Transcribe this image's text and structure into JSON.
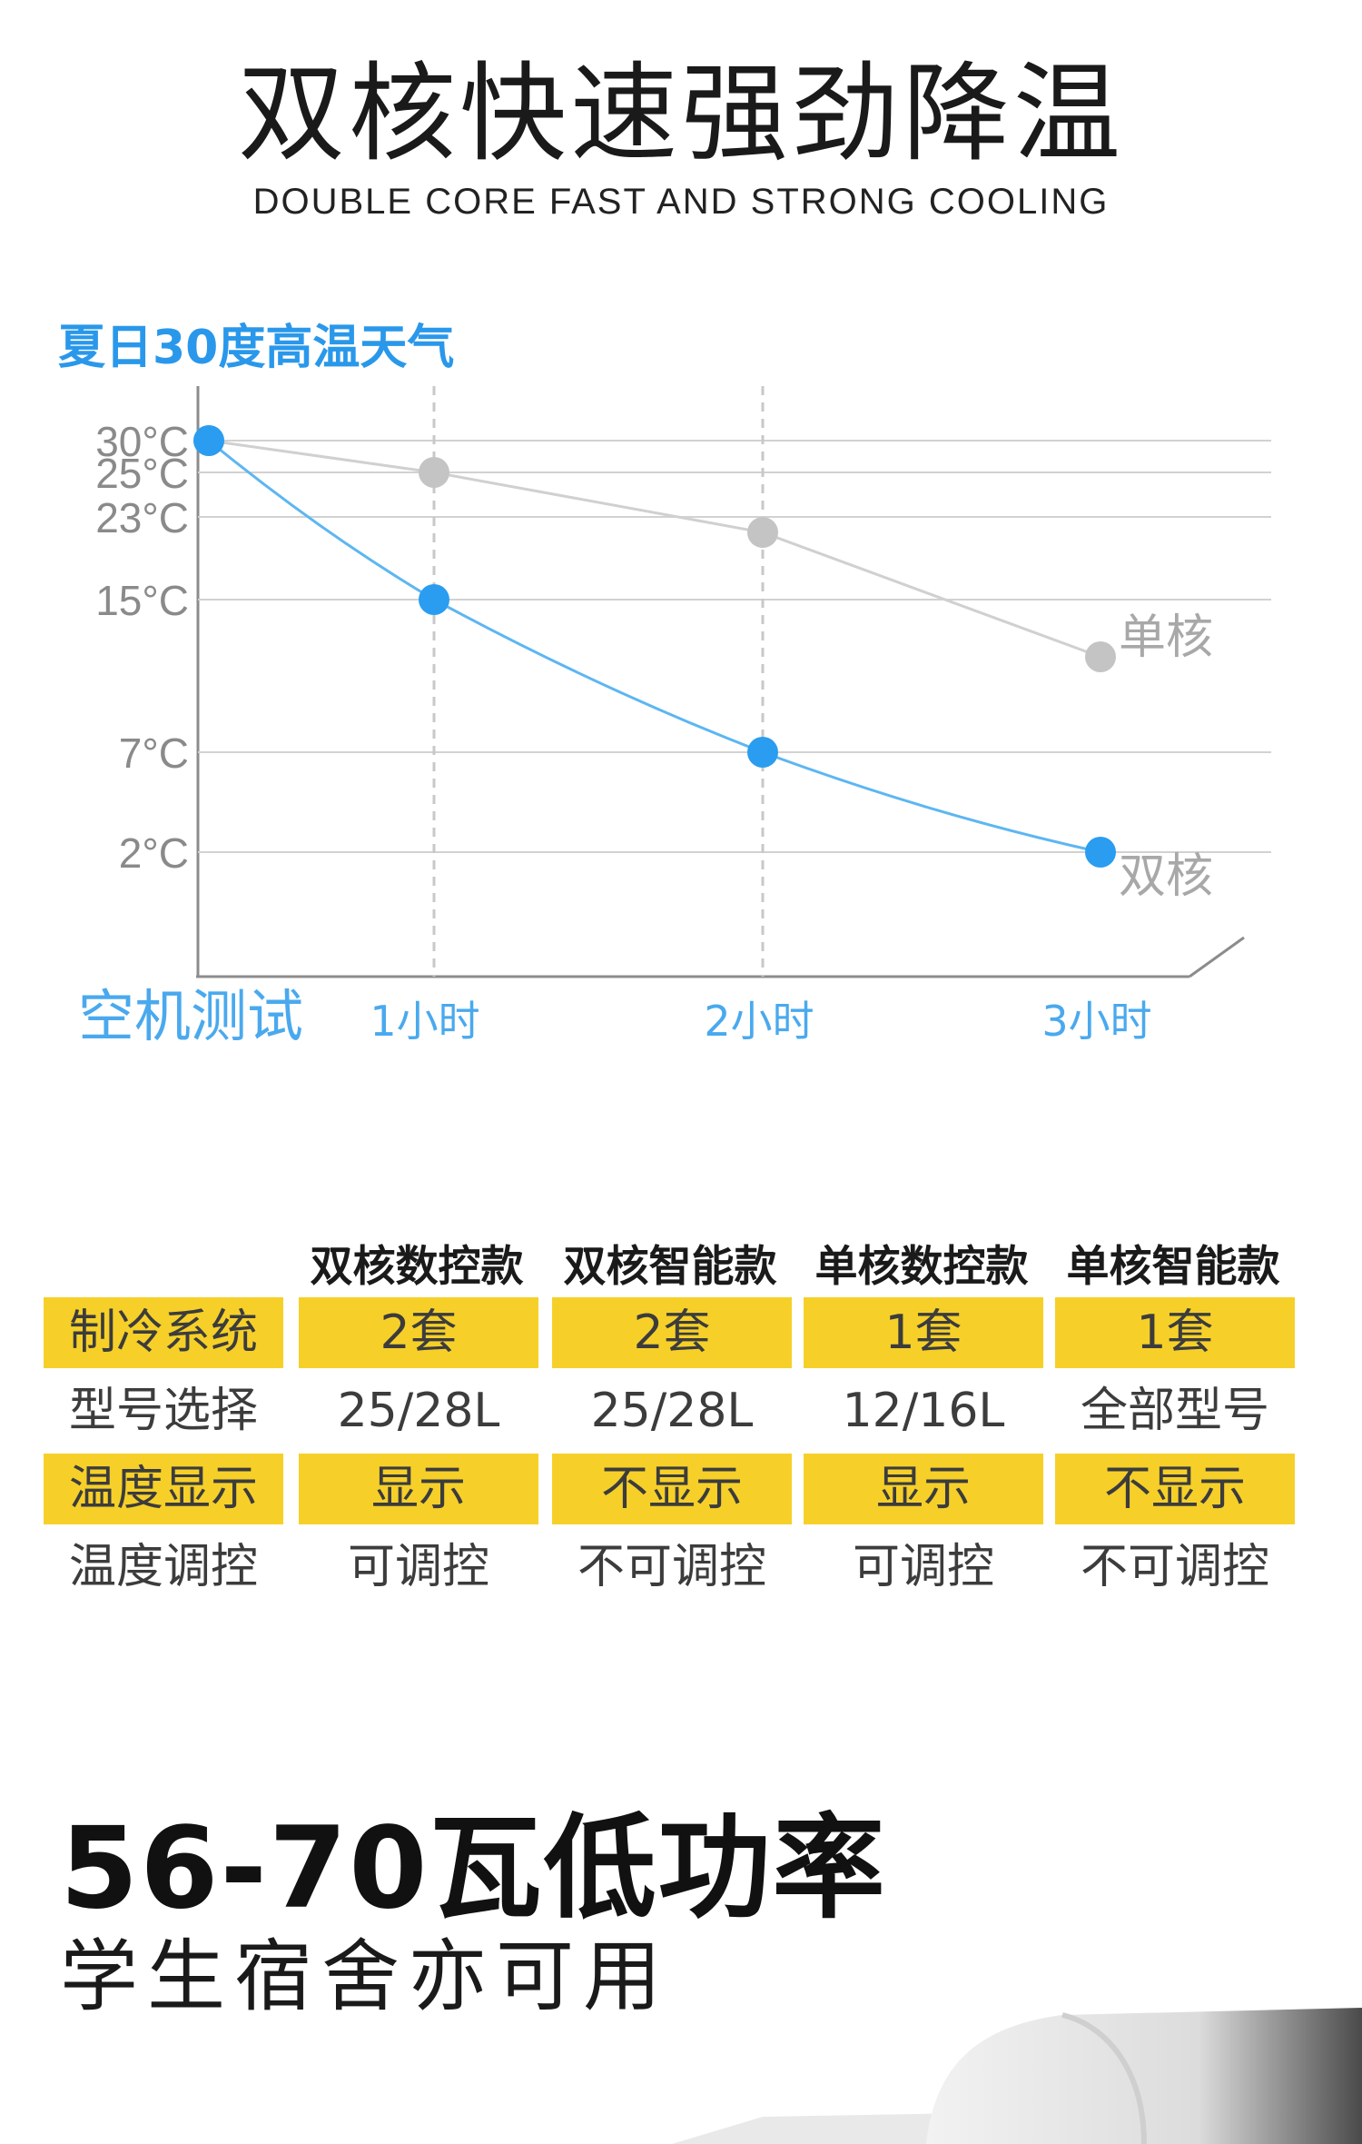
{
  "header": {
    "title": "双核快速强劲降温",
    "subtitle": "DOUBLE CORE FAST AND STRONG COOLING"
  },
  "chart_caption": "夏日30度高温天气",
  "chart_data": {
    "type": "line",
    "x_labels": [
      "空机测试",
      "1小时",
      "2小时",
      "3小时"
    ],
    "y_ticks": [
      "30°C",
      "25°C",
      "23°C",
      "15°C",
      "7°C",
      "2°C"
    ],
    "y_tick_values": [
      30,
      25,
      23,
      15,
      7,
      2
    ],
    "series": [
      {
        "name": "单核",
        "values": [
          30,
          25,
          21.5,
          12
        ],
        "color": "#c4c4c4"
      },
      {
        "name": "双核",
        "values": [
          30,
          15,
          7,
          2
        ],
        "color": "#2a9df0"
      }
    ],
    "grid": true,
    "accent": "#4aa9ee"
  },
  "table": {
    "headers": [
      "双核数控款",
      "双核智能款",
      "单核数控款",
      "单核智能款"
    ],
    "rows": [
      {
        "label": "制冷系统",
        "values": [
          "2套",
          "2套",
          "1套",
          "1套"
        ],
        "highlight": true
      },
      {
        "label": "型号选择",
        "values": [
          "25/28L",
          "25/28L",
          "12/16L",
          "全部型号"
        ],
        "highlight": false
      },
      {
        "label": "温度显示",
        "values": [
          "显示",
          "不显示",
          "显示",
          "不显示"
        ],
        "highlight": true
      },
      {
        "label": "温度调控",
        "values": [
          "可调控",
          "不可调控",
          "可调控",
          "不可调控"
        ],
        "highlight": false
      }
    ],
    "highlight_color": "#f6d029"
  },
  "power": {
    "title": "56-70瓦低功率",
    "subtitle": "学生宿舍亦可用"
  }
}
